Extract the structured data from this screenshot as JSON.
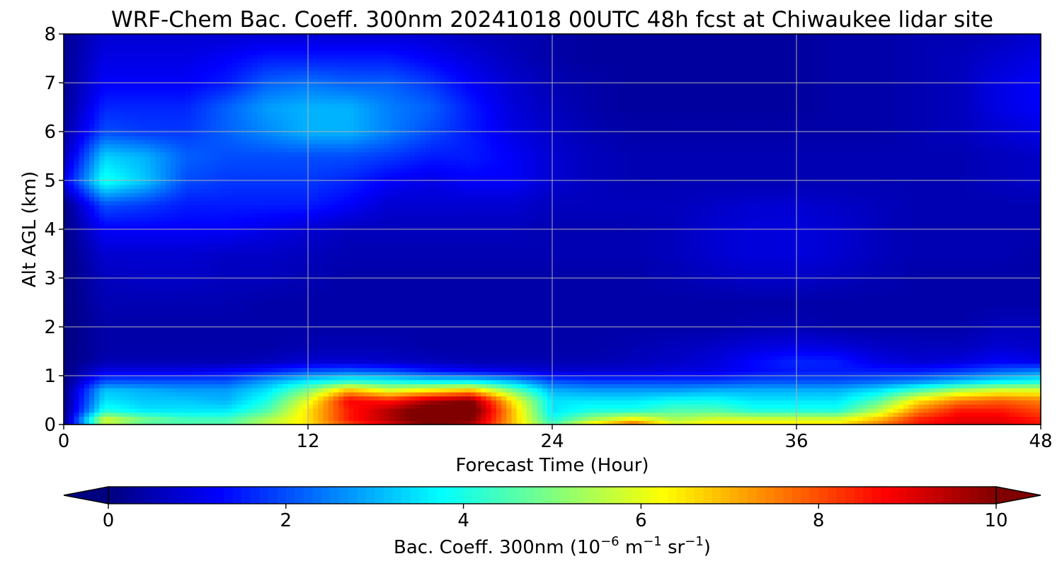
{
  "chart_data": {
    "type": "heatmap",
    "title": "WRF-Chem Bac. Coeff. 300nm  20241018 00UTC 48h fcst at Chiwaukee lidar site",
    "xlabel": "Forecast Time (Hour)",
    "ylabel": "Alt AGL (km)",
    "xlim": [
      0,
      48
    ],
    "ylim": [
      0,
      8
    ],
    "xticks": [
      "0",
      "12",
      "24",
      "36",
      "48"
    ],
    "yticks": [
      "0",
      "1",
      "2",
      "3",
      "4",
      "5",
      "6",
      "7",
      "8"
    ],
    "grid": true,
    "x_hours": [
      0,
      2,
      4,
      6,
      8,
      10,
      12,
      14,
      16,
      18,
      20,
      22,
      24,
      26,
      28,
      30,
      32,
      34,
      36,
      38,
      40,
      42,
      44,
      46,
      48
    ],
    "y_km": [
      0,
      0.1,
      0.3,
      0.5,
      0.7,
      0.9,
      1.1,
      1.3,
      1.6,
      2.0,
      2.5,
      3.0,
      3.5,
      4.0,
      4.5,
      5.0,
      5.5,
      6.0,
      6.5,
      7.0,
      7.5,
      8.0
    ],
    "values_units": "10^-6 m^-1 sr^-1",
    "values": [
      [
        0.0,
        5.5,
        4.5,
        4.5,
        4.5,
        5.5,
        6.5,
        8.0,
        9.0,
        10.0,
        9.5,
        7.0,
        4.5,
        6.5,
        8.0,
        6.0,
        6.5,
        6.5,
        6.5,
        6.5,
        7.5,
        8.5,
        9.0,
        9.0,
        8.5
      ],
      [
        0.0,
        6.0,
        5.0,
        4.5,
        4.5,
        5.5,
        6.5,
        8.5,
        9.5,
        10.5,
        10.0,
        7.0,
        4.0,
        5.5,
        6.5,
        5.5,
        6.0,
        6.0,
        6.0,
        6.0,
        7.0,
        8.5,
        9.0,
        9.0,
        8.5
      ],
      [
        0.0,
        4.0,
        3.5,
        3.5,
        3.5,
        4.5,
        6.5,
        8.5,
        9.5,
        10.5,
        10.5,
        7.0,
        3.5,
        4.0,
        4.0,
        4.5,
        4.5,
        4.0,
        4.0,
        4.0,
        5.5,
        7.5,
        8.5,
        8.5,
        8.0
      ],
      [
        0.0,
        3.5,
        3.2,
        3.2,
        3.0,
        4.0,
        6.0,
        8.8,
        8.5,
        9.5,
        10.0,
        6.5,
        3.5,
        3.5,
        3.5,
        3.8,
        3.8,
        3.5,
        3.5,
        3.5,
        4.5,
        6.5,
        7.5,
        7.8,
        7.5
      ],
      [
        0.0,
        3.2,
        3.0,
        2.8,
        2.8,
        3.5,
        5.0,
        7.0,
        6.0,
        6.5,
        7.0,
        5.0,
        3.0,
        2.8,
        2.8,
        2.8,
        3.0,
        3.0,
        3.0,
        3.0,
        3.5,
        4.5,
        5.5,
        6.0,
        6.0
      ],
      [
        0.0,
        2.0,
        2.0,
        2.0,
        2.0,
        2.8,
        3.5,
        4.0,
        3.8,
        3.5,
        3.5,
        3.0,
        2.0,
        1.8,
        1.8,
        1.8,
        1.8,
        2.0,
        2.0,
        2.0,
        2.2,
        2.5,
        3.0,
        3.5,
        3.8
      ],
      [
        0.0,
        1.0,
        1.0,
        1.0,
        1.2,
        1.5,
        2.0,
        2.2,
        2.0,
        1.5,
        1.2,
        1.0,
        0.8,
        0.8,
        0.8,
        0.9,
        1.0,
        1.3,
        1.5,
        1.5,
        1.5,
        1.5,
        1.8,
        2.2,
        2.5
      ],
      [
        0.0,
        0.5,
        0.5,
        0.5,
        0.5,
        0.6,
        0.8,
        0.8,
        0.7,
        0.6,
        0.5,
        0.5,
        0.5,
        0.5,
        0.6,
        0.7,
        0.9,
        1.3,
        1.6,
        1.5,
        1.0,
        0.8,
        0.9,
        1.2,
        1.0
      ],
      [
        0.0,
        0.4,
        0.4,
        0.4,
        0.4,
        0.4,
        0.5,
        0.5,
        0.5,
        0.4,
        0.4,
        0.4,
        0.4,
        0.4,
        0.5,
        0.6,
        0.7,
        0.9,
        1.0,
        0.9,
        0.7,
        0.6,
        0.6,
        0.8,
        0.7
      ],
      [
        0.0,
        0.4,
        0.4,
        0.4,
        0.4,
        0.4,
        0.4,
        0.4,
        0.4,
        0.4,
        0.4,
        0.4,
        0.4,
        0.4,
        0.4,
        0.4,
        0.4,
        0.5,
        0.5,
        0.4,
        0.4,
        0.4,
        0.4,
        0.6,
        0.6
      ],
      [
        0.0,
        0.5,
        0.5,
        0.5,
        0.5,
        0.4,
        0.4,
        0.4,
        0.4,
        0.4,
        0.4,
        0.4,
        0.4,
        0.4,
        0.4,
        0.4,
        0.4,
        0.4,
        0.4,
        0.4,
        0.4,
        0.4,
        0.4,
        0.4,
        0.4
      ],
      [
        0.0,
        0.6,
        0.7,
        0.7,
        0.6,
        0.6,
        0.5,
        0.4,
        0.4,
        0.4,
        0.4,
        0.4,
        0.4,
        0.4,
        0.4,
        0.5,
        0.6,
        0.7,
        0.7,
        0.6,
        0.5,
        0.4,
        0.4,
        0.4,
        0.4
      ],
      [
        0.0,
        0.8,
        0.8,
        0.8,
        0.7,
        0.7,
        0.6,
        0.5,
        0.5,
        0.5,
        0.5,
        0.5,
        0.5,
        0.5,
        0.5,
        0.6,
        0.8,
        0.9,
        0.9,
        0.8,
        0.6,
        0.5,
        0.5,
        0.5,
        0.4
      ],
      [
        0.0,
        1.2,
        1.2,
        1.2,
        1.2,
        1.0,
        0.8,
        0.6,
        0.6,
        0.6,
        0.6,
        0.6,
        0.5,
        0.5,
        0.5,
        0.6,
        0.8,
        0.9,
        0.9,
        0.8,
        0.6,
        0.5,
        0.5,
        0.5,
        0.5
      ],
      [
        0.0,
        2.0,
        1.8,
        1.5,
        1.5,
        1.5,
        1.5,
        1.2,
        0.8,
        0.8,
        0.8,
        0.8,
        0.6,
        0.6,
        0.6,
        0.6,
        0.7,
        0.8,
        0.8,
        0.7,
        0.6,
        0.5,
        0.5,
        0.5,
        0.5
      ],
      [
        1.0,
        4.0,
        3.2,
        2.0,
        1.8,
        1.8,
        1.8,
        1.6,
        1.2,
        1.0,
        1.2,
        1.2,
        0.8,
        0.6,
        0.5,
        0.5,
        0.5,
        0.5,
        0.5,
        0.5,
        0.5,
        0.5,
        0.5,
        0.6,
        0.7
      ],
      [
        0.5,
        3.3,
        3.0,
        2.2,
        2.0,
        2.0,
        2.0,
        2.0,
        1.8,
        1.5,
        1.5,
        1.2,
        0.8,
        0.6,
        0.5,
        0.5,
        0.5,
        0.5,
        0.5,
        0.5,
        0.5,
        0.5,
        0.5,
        0.6,
        0.7
      ],
      [
        0.3,
        2.0,
        1.8,
        1.8,
        2.2,
        2.6,
        3.0,
        3.0,
        2.5,
        2.0,
        1.5,
        1.0,
        0.7,
        0.5,
        0.4,
        0.4,
        0.4,
        0.4,
        0.4,
        0.4,
        0.4,
        0.5,
        0.6,
        0.8,
        1.0
      ],
      [
        0.2,
        1.6,
        1.6,
        1.6,
        2.2,
        2.8,
        3.0,
        3.0,
        2.5,
        2.2,
        1.5,
        0.9,
        0.6,
        0.4,
        0.3,
        0.3,
        0.3,
        0.3,
        0.3,
        0.4,
        0.4,
        0.5,
        0.6,
        1.0,
        1.2
      ],
      [
        0.2,
        1.2,
        1.2,
        1.2,
        1.5,
        2.2,
        2.4,
        2.2,
        2.2,
        1.8,
        1.2,
        0.8,
        0.5,
        0.4,
        0.3,
        0.3,
        0.3,
        0.3,
        0.3,
        0.4,
        0.4,
        0.5,
        0.6,
        1.0,
        1.2
      ],
      [
        0.2,
        1.0,
        1.0,
        1.0,
        1.2,
        1.5,
        1.5,
        1.5,
        1.5,
        1.2,
        0.9,
        0.6,
        0.4,
        0.3,
        0.3,
        0.3,
        0.3,
        0.3,
        0.3,
        0.4,
        0.4,
        0.5,
        0.6,
        0.8,
        1.0
      ],
      [
        0.2,
        0.8,
        0.8,
        0.8,
        0.8,
        0.8,
        0.8,
        0.8,
        0.8,
        0.8,
        0.6,
        0.5,
        0.4,
        0.3,
        0.3,
        0.3,
        0.3,
        0.3,
        0.3,
        0.4,
        0.4,
        0.5,
        0.5,
        0.6,
        0.8
      ]
    ],
    "colorbar": {
      "label_prefix": "Bac. Coeff. 300nm  (10",
      "label_exp1": "−6",
      "label_mid1": " m",
      "label_exp2": "−1",
      "label_mid2": " sr",
      "label_exp3": "−1",
      "label_suffix": ")",
      "min": 0,
      "max": 10,
      "levels": 100,
      "ticks": [
        "0",
        "2",
        "4",
        "6",
        "8",
        "10"
      ],
      "extend": "both",
      "colormap": "jet"
    }
  }
}
